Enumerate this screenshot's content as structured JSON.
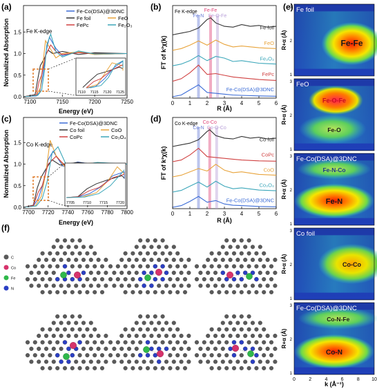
{
  "colors": {
    "fe_codsa": "#3a6bd6",
    "fe_foil": "#333333",
    "feo": "#e8a33a",
    "fe2o3": "#3aa6b9",
    "fepc": "#d04040",
    "co_codsa": "#3a6bd6",
    "co_foil": "#333333",
    "cooxide": "#e8a33a",
    "co2o3": "#3aa6b9",
    "copc": "#d04040",
    "highlight_box": "#e07b2a"
  },
  "panels": {
    "a": {
      "letter": "(a)",
      "edge_label": "Fe K-edge",
      "legend": [
        "Fe-Co(DSA)@3DNC",
        "Fe foil",
        "FeO",
        "FePc",
        "Fe₂O₃"
      ],
      "inset_ticks": [
        "7110",
        "7115",
        "7120",
        "7125"
      ]
    },
    "b": {
      "letter": "(b)",
      "edge_label": "Fe K-edge",
      "peaks": [
        "Fe-N",
        "Fe-Fe",
        "Fe-O-Fe"
      ],
      "curve_labels": [
        "Fe foil",
        "FeO",
        "Fe₂O₃",
        "FePc",
        "Fe-Co(DSA)@3DNC"
      ]
    },
    "c": {
      "letter": "(c)",
      "edge_label": "Co K-edge",
      "legend": [
        "Fe-Co(DSA)@3DNC",
        "Co foil",
        "CoO",
        "CoPc",
        "Co₃O₄"
      ],
      "inset_ticks": [
        "7705",
        "7710",
        "7715",
        "7720"
      ]
    },
    "d": {
      "letter": "(d)",
      "edge_label": "Co K-edge",
      "peaks": [
        "Co-N",
        "Co-Co",
        "Co-O-Co"
      ],
      "curve_labels": [
        "Co foil",
        "CoPc",
        "CoO",
        "Co₃O₄",
        "Fe-Co(DSA)@3DNC"
      ]
    },
    "e": {
      "letter": "(e)",
      "xlabel": "k (Å⁻¹)",
      "ylabel": "R+α (Å)",
      "xticks": [
        "0",
        "2",
        "4",
        "6",
        "8",
        "10"
      ],
      "yticks": [
        "1",
        "2",
        "3"
      ],
      "subpanels": [
        {
          "title": "Fe foil",
          "labels": [
            "Fe-Fe"
          ]
        },
        {
          "title": "FeO",
          "labels": [
            "Fe-O-Fe",
            "Fe-O"
          ]
        },
        {
          "title": "Fe-Co(DSA)@3DNC",
          "labels": [
            "Fe-N-Co",
            "Fe-N"
          ]
        },
        {
          "title": "Co foil",
          "labels": [
            "Co-Co"
          ]
        },
        {
          "title": "Fe-Co(DSA)@3DNC",
          "labels": [
            "Co-N-Fe",
            "Co-N"
          ]
        }
      ]
    },
    "f": {
      "letter": "(f)",
      "legend": [
        "C",
        "Co",
        "Fe",
        "N"
      ]
    }
  },
  "chart_data": [
    {
      "type": "line",
      "panel": "a",
      "xlabel": "Energy (eV)",
      "ylabel": "Normalized Absorption",
      "xlim": [
        7090,
        7250
      ],
      "ylim": [
        0,
        1.6
      ],
      "xticks": [
        "7100",
        "7150",
        "7200",
        "7250"
      ],
      "yticks": [
        "0.0",
        "0.5",
        "1.0",
        "1.5"
      ],
      "series": [
        {
          "name": "Fe-Co(DSA)@3DNC",
          "x": [
            7090,
            7110,
            7115,
            7120,
            7125,
            7130,
            7140,
            7150,
            7175,
            7200,
            7250
          ],
          "y": [
            0,
            0.02,
            0.1,
            0.5,
            1.05,
            1.38,
            1.12,
            0.95,
            1.05,
            0.98,
            1.0
          ]
        },
        {
          "name": "Fe foil",
          "x": [
            7090,
            7108,
            7112,
            7116,
            7122,
            7128,
            7135,
            7150,
            7175,
            7200,
            7250
          ],
          "y": [
            0,
            0.05,
            0.4,
            0.72,
            0.88,
            1.08,
            1.0,
            1.05,
            0.98,
            1.02,
            1.0
          ]
        },
        {
          "name": "FeO",
          "x": [
            7090,
            7110,
            7116,
            7120,
            7124,
            7130,
            7140,
            7150,
            7175,
            7200,
            7250
          ],
          "y": [
            0,
            0.03,
            0.2,
            0.75,
            1.3,
            1.15,
            0.9,
            1.0,
            1.04,
            0.98,
            1.0
          ]
        },
        {
          "name": "FePc",
          "x": [
            7090,
            7110,
            7114,
            7118,
            7124,
            7132,
            7140,
            7150,
            7175,
            7200,
            7250
          ],
          "y": [
            0,
            0.04,
            0.35,
            0.5,
            0.95,
            1.2,
            1.05,
            0.98,
            1.02,
            1.0,
            1.0
          ]
        },
        {
          "name": "Fe₂O₃",
          "x": [
            7090,
            7112,
            7118,
            7122,
            7126,
            7132,
            7140,
            7150,
            7175,
            7200,
            7250
          ],
          "y": [
            0,
            0.03,
            0.15,
            0.55,
            1.2,
            1.45,
            1.05,
            0.92,
            1.06,
            0.99,
            1.0
          ]
        }
      ]
    },
    {
      "type": "line",
      "panel": "b",
      "xlabel": "R (Å)",
      "ylabel": "FT of k²χ(k)",
      "xlim": [
        0,
        6
      ],
      "xticks": [
        "0",
        "1",
        "2",
        "3",
        "4",
        "5",
        "6"
      ],
      "peak_positions": [
        1.5,
        2.2,
        2.6
      ],
      "series": [
        {
          "name": "Fe foil",
          "x": [
            0,
            0.5,
            1,
            1.5,
            2,
            2.2,
            2.5,
            3,
            3.5,
            4,
            4.5,
            5,
            5.5,
            6
          ],
          "y": [
            0,
            0.1,
            0.2,
            0.4,
            0.9,
            1.0,
            0.7,
            0.5,
            0.45,
            0.6,
            0.5,
            0.55,
            0.45,
            0.5
          ]
        },
        {
          "name": "FeO",
          "x": [
            0,
            0.5,
            1,
            1.5,
            2,
            2.5,
            3,
            3.5,
            4,
            5,
            6
          ],
          "y": [
            0,
            0.1,
            0.3,
            0.55,
            0.3,
            0.6,
            0.35,
            0.2,
            0.25,
            0.15,
            0.1
          ]
        },
        {
          "name": "Fe₂O₃",
          "x": [
            0,
            0.5,
            1,
            1.5,
            2,
            2.5,
            3,
            3.5,
            4,
            5,
            6
          ],
          "y": [
            0,
            0.1,
            0.3,
            0.6,
            0.3,
            0.55,
            0.45,
            0.25,
            0.3,
            0.15,
            0.1
          ]
        },
        {
          "name": "FePc",
          "x": [
            0,
            0.5,
            1,
            1.5,
            2,
            2.5,
            3,
            3.5,
            4,
            5,
            6
          ],
          "y": [
            0,
            0.15,
            0.5,
            0.95,
            0.4,
            0.45,
            0.35,
            0.25,
            0.2,
            0.1,
            0.05
          ]
        },
        {
          "name": "Fe-Co(DSA)@3DNC",
          "x": [
            0,
            0.5,
            1,
            1.5,
            2,
            2.5,
            3,
            3.5,
            4,
            5,
            6
          ],
          "y": [
            0,
            0.1,
            0.4,
            0.7,
            0.25,
            0.2,
            0.15,
            0.1,
            0.08,
            0.05,
            0.03
          ]
        }
      ]
    },
    {
      "type": "line",
      "panel": "c",
      "xlabel": "Energy (eV)",
      "ylabel": "Normalized Absorption",
      "xlim": [
        7695,
        7800
      ],
      "ylim": [
        0,
        1.6
      ],
      "xticks": [
        "7700",
        "7720",
        "7740",
        "7760",
        "7780",
        "7800"
      ],
      "yticks": [
        "0.0",
        "0.5",
        "1.0",
        "1.5"
      ],
      "series": [
        {
          "name": "Fe-Co(DSA)@3DNC",
          "x": [
            7695,
            7705,
            7710,
            7715,
            7720,
            7725,
            7735,
            7750,
            7770,
            7800
          ],
          "y": [
            0,
            0.03,
            0.2,
            0.55,
            1.1,
            1.3,
            0.95,
            1.05,
            0.98,
            1.0
          ]
        },
        {
          "name": "Co foil",
          "x": [
            7695,
            7705,
            7709,
            7713,
            7718,
            7724,
            7732,
            7750,
            7770,
            7800
          ],
          "y": [
            0,
            0.05,
            0.45,
            0.7,
            0.9,
            1.1,
            0.98,
            1.04,
            0.99,
            1.0
          ]
        },
        {
          "name": "CoO",
          "x": [
            7695,
            7707,
            7713,
            7718,
            7722,
            7728,
            7740,
            7750,
            7770,
            7800
          ],
          "y": [
            0,
            0.03,
            0.25,
            0.85,
            1.55,
            1.2,
            0.85,
            1.0,
            1.03,
            1.0
          ]
        },
        {
          "name": "CoPc",
          "x": [
            7695,
            7705,
            7710,
            7714,
            7720,
            7728,
            7738,
            7750,
            7770,
            7800
          ],
          "y": [
            0,
            0.04,
            0.35,
            0.5,
            1.0,
            1.18,
            0.95,
            1.02,
            0.99,
            1.0
          ]
        },
        {
          "name": "Co₃O₄",
          "x": [
            7695,
            7708,
            7714,
            7719,
            7724,
            7730,
            7740,
            7750,
            7770,
            7800
          ],
          "y": [
            0,
            0.03,
            0.2,
            0.6,
            1.25,
            1.4,
            0.9,
            0.97,
            1.04,
            1.0
          ]
        }
      ]
    },
    {
      "type": "line",
      "panel": "d",
      "xlabel": "R (Å)",
      "ylabel": "FT of k²χ(k)",
      "xlim": [
        0,
        6
      ],
      "xticks": [
        "0",
        "1",
        "2",
        "3",
        "4",
        "5",
        "6"
      ],
      "peak_positions": [
        1.5,
        2.15,
        2.55
      ],
      "series": [
        {
          "name": "Co foil",
          "x": [
            0,
            0.5,
            1,
            1.5,
            2,
            2.15,
            2.5,
            3,
            3.5,
            4,
            4.5,
            5,
            5.5,
            6
          ],
          "y": [
            0,
            0.1,
            0.2,
            0.4,
            0.9,
            1.0,
            0.65,
            0.5,
            0.45,
            0.6,
            0.5,
            0.55,
            0.45,
            0.5
          ]
        },
        {
          "name": "CoPc",
          "x": [
            0,
            0.5,
            1,
            1.5,
            2,
            2.5,
            3,
            3.5,
            4,
            5,
            6
          ],
          "y": [
            0,
            0.1,
            0.4,
            0.8,
            0.3,
            0.25,
            0.2,
            0.15,
            0.1,
            0.05,
            0.03
          ]
        },
        {
          "name": "CoO",
          "x": [
            0,
            0.5,
            1,
            1.5,
            2,
            2.5,
            3,
            3.5,
            4,
            5,
            6
          ],
          "y": [
            0,
            0.1,
            0.3,
            0.5,
            0.35,
            0.75,
            0.4,
            0.25,
            0.3,
            0.15,
            0.1
          ]
        },
        {
          "name": "Co₃O₄",
          "x": [
            0,
            0.5,
            1,
            1.5,
            2,
            2.5,
            3,
            3.5,
            4,
            5,
            6
          ],
          "y": [
            0,
            0.1,
            0.35,
            0.6,
            0.3,
            0.65,
            0.35,
            0.2,
            0.25,
            0.12,
            0.08
          ]
        },
        {
          "name": "Fe-Co(DSA)@3DNC",
          "x": [
            0,
            0.5,
            1,
            1.5,
            2,
            2.5,
            3,
            3.5,
            4,
            5,
            6
          ],
          "y": [
            0,
            0.1,
            0.35,
            0.65,
            0.3,
            0.4,
            0.2,
            0.12,
            0.1,
            0.05,
            0.03
          ]
        }
      ]
    }
  ]
}
